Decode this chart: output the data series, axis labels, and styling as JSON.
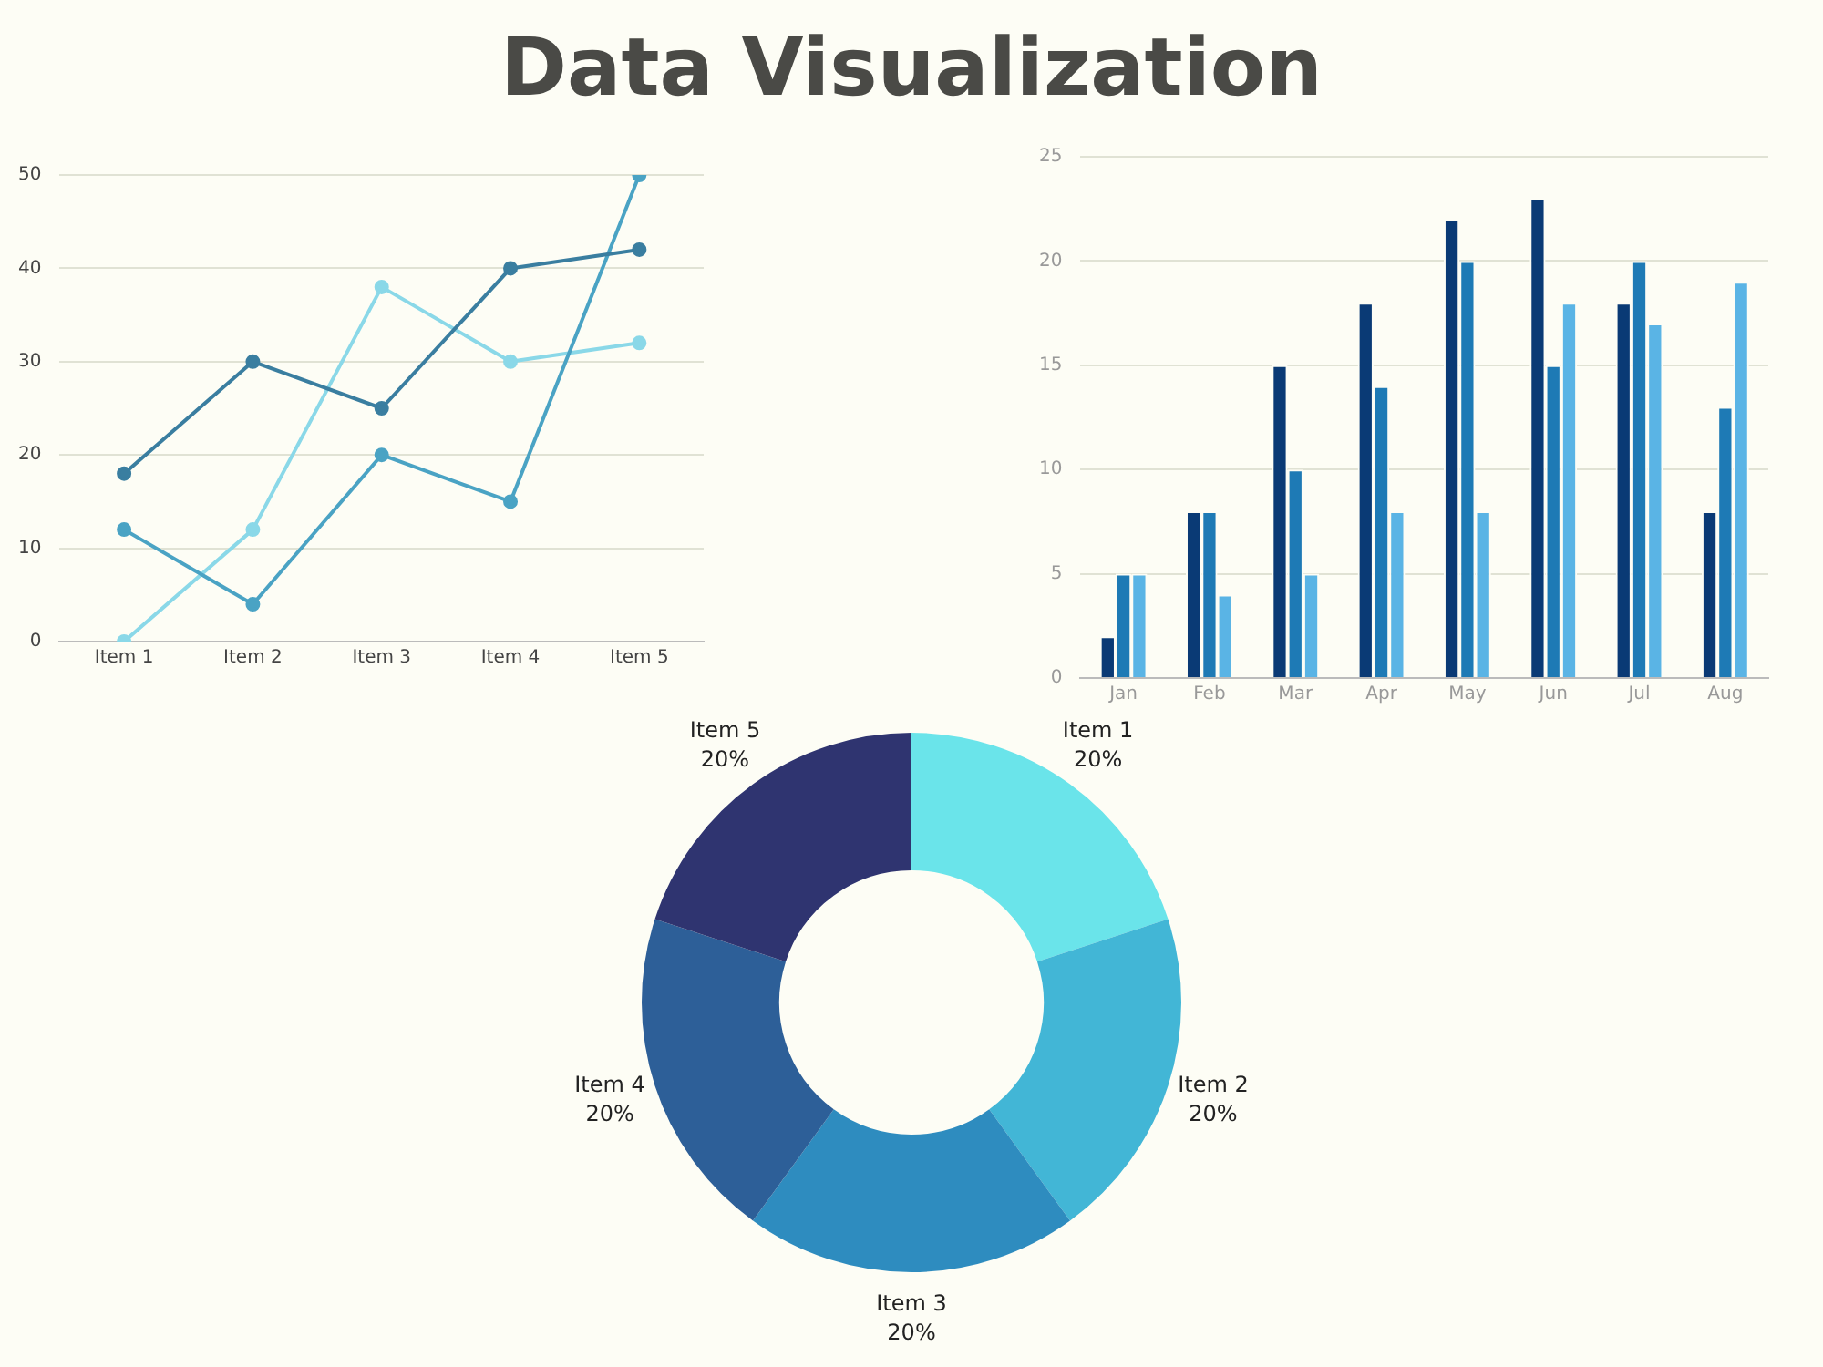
{
  "chart_data": [
    {
      "type": "line",
      "title": "Data Visualization",
      "categories": [
        "Item 1",
        "Item 2",
        "Item 3",
        "Item 4",
        "Item 5"
      ],
      "series": [
        {
          "color": "#3a7ea0",
          "values": [
            18,
            30,
            25,
            40,
            42
          ]
        },
        {
          "color": "#4aa3c4",
          "values": [
            12,
            4,
            20,
            15,
            50
          ]
        },
        {
          "color": "#8ad8e8",
          "values": [
            0,
            12,
            38,
            30,
            32
          ]
        }
      ],
      "ylim": [
        0,
        50
      ],
      "yticks": [
        0,
        10,
        20,
        30,
        40,
        50
      ],
      "grid": "y",
      "marker": "circle",
      "line_style": "solid",
      "legend": false
    },
    {
      "type": "bar",
      "categories": [
        "Jan",
        "Feb",
        "Mar",
        "Apr",
        "May",
        "Jun",
        "Jul",
        "Aug"
      ],
      "series": [
        {
          "color": "#0a3a75",
          "values": [
            2,
            8,
            15,
            18,
            22,
            23,
            18,
            8
          ]
        },
        {
          "color": "#1e7ab5",
          "values": [
            5,
            8,
            10,
            14,
            20,
            15,
            20,
            13
          ]
        },
        {
          "color": "#5ab4e5",
          "values": [
            5,
            4,
            5,
            8,
            8,
            18,
            17,
            19
          ]
        }
      ],
      "ylim": [
        0,
        25
      ],
      "yticks": [
        0,
        5,
        10,
        15,
        20,
        25
      ],
      "grid": "y",
      "legend": false
    },
    {
      "type": "donut",
      "categories": [
        "Item 1",
        "Item 2",
        "Item 3",
        "Item 4",
        "Item 5"
      ],
      "values": [
        20,
        20,
        20,
        20,
        20
      ],
      "value_labels": [
        "20%",
        "20%",
        "20%",
        "20%",
        "20%"
      ],
      "colors": [
        "#6ae4ea",
        "#42b6d6",
        "#2e8cbf",
        "#2d5f98",
        "#2f3470"
      ],
      "legend": false
    }
  ]
}
